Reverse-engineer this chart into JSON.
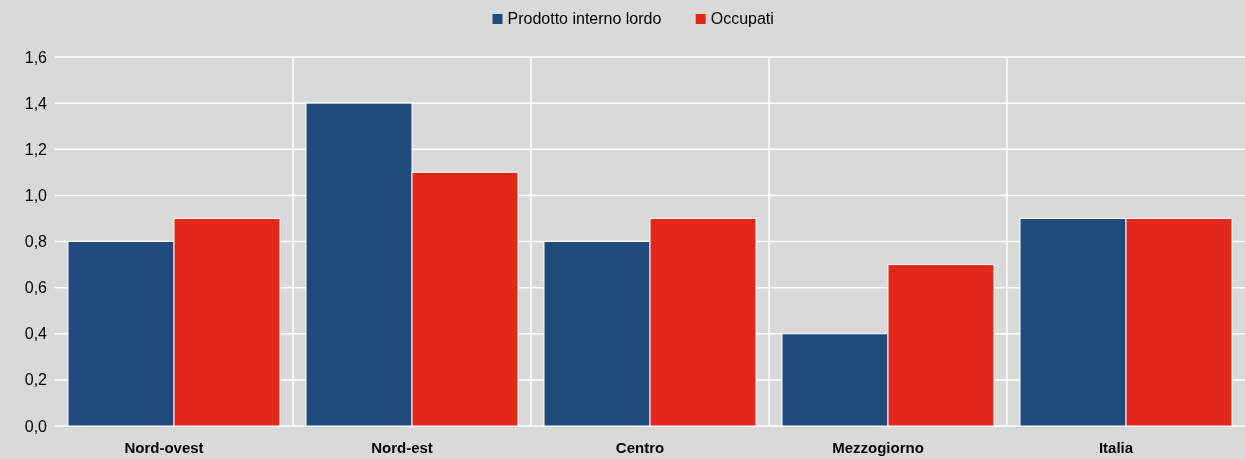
{
  "chart_data": {
    "type": "bar",
    "categories": [
      "Nord-ovest",
      "Nord-est",
      "Centro",
      "Mezzogiorno",
      "Italia"
    ],
    "series": [
      {
        "name": "Prodotto interno lordo",
        "color": "#214a7c",
        "values": [
          0.8,
          1.4,
          0.8,
          0.4,
          0.9
        ]
      },
      {
        "name": "Occupati",
        "color": "#e3281b",
        "values": [
          0.9,
          1.1,
          0.9,
          0.7,
          0.9
        ]
      }
    ],
    "ylim": [
      0,
      1.6
    ],
    "yticks": [
      {
        "value": 0,
        "label": "0,0"
      },
      {
        "value": 0.2,
        "label": "0,2"
      },
      {
        "value": 0.4,
        "label": "0,4"
      },
      {
        "value": 0.6,
        "label": "0,6"
      },
      {
        "value": 0.8,
        "label": "0,8"
      },
      {
        "value": 1,
        "label": "1,0"
      },
      {
        "value": 1.2,
        "label": "1,2"
      },
      {
        "value": 1.4,
        "label": "1,4"
      },
      {
        "value": 1.6,
        "label": "1,6"
      }
    ],
    "grid": true,
    "legend": "top"
  }
}
